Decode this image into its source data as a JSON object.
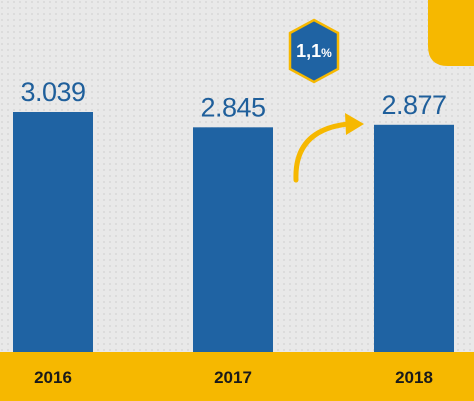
{
  "chart_data": {
    "type": "bar",
    "categories": [
      "2016",
      "2017",
      "2018"
    ],
    "values": [
      3039,
      2845,
      2877
    ],
    "value_labels": [
      "3.039",
      "2.845",
      "2.877"
    ],
    "title": "",
    "xlabel": "",
    "ylabel": "",
    "grid": false,
    "annotation": {
      "number": "1,1",
      "suffix": "%"
    }
  },
  "colors": {
    "bar": "#1f63a3",
    "value_text": "#1f5f9b",
    "accent": "#f6b800",
    "badge": "#1f63a3",
    "background": "#e9e9e9"
  }
}
